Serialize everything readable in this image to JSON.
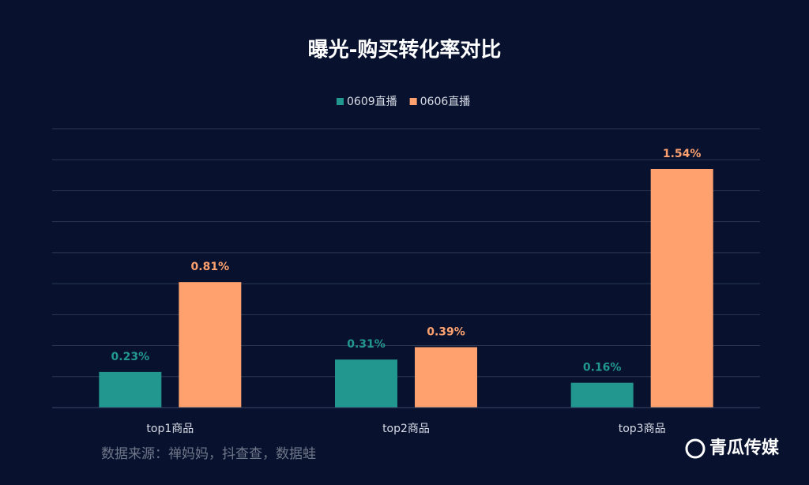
{
  "chart_data": {
    "type": "bar",
    "title": "曝光-购买转化率对比",
    "categories": [
      "top1商品",
      "top2商品",
      "top3商品"
    ],
    "series": [
      {
        "name": "0609直播",
        "color": "#22978f",
        "values": [
          0.23,
          0.31,
          0.16
        ],
        "value_labels": [
          "0.23%",
          "0.31%",
          "0.16%"
        ]
      },
      {
        "name": "0606直播",
        "color": "#ffa16e",
        "values": [
          0.81,
          0.39,
          1.54
        ],
        "value_labels": [
          "0.81%",
          "0.39%",
          "1.54%"
        ]
      }
    ],
    "ylim": [
      0,
      1.8
    ],
    "yticks": [
      0,
      0.2,
      0.4,
      0.6,
      0.8,
      1.0,
      1.2,
      1.4,
      1.6,
      1.8
    ],
    "grid": true,
    "legend": "top"
  },
  "footer": {
    "source": "数据来源：禅妈妈，抖查查，数据蛙",
    "brand": "青瓜传媒"
  }
}
